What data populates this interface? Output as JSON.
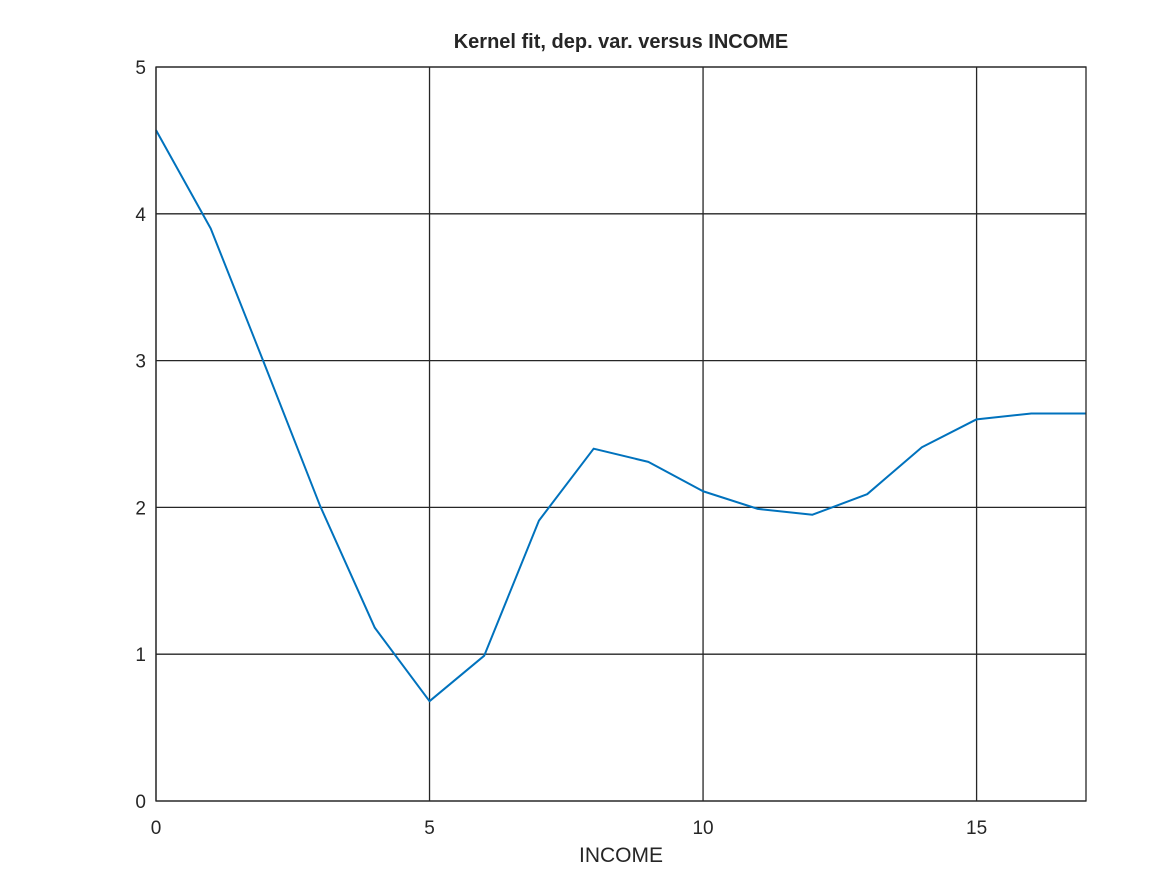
{
  "chart_data": {
    "type": "line",
    "title": "Kernel fit, dep. var. versus INCOME",
    "xlabel": "INCOME",
    "ylabel": "",
    "xlim": [
      0,
      17
    ],
    "ylim": [
      0,
      5
    ],
    "xticks": [
      0,
      5,
      10,
      15
    ],
    "yticks": [
      0,
      1,
      2,
      3,
      4,
      5
    ],
    "grid": true,
    "legend": "none",
    "line_color": "#0072bd",
    "grid_color": "#262626",
    "series": [
      {
        "x": [
          0,
          1,
          2,
          3,
          4,
          5,
          6,
          7,
          8,
          9,
          10,
          11,
          12,
          13,
          14,
          15,
          16,
          17
        ],
        "y": [
          4.57,
          3.9,
          2.96,
          2.01,
          1.18,
          0.68,
          0.99,
          1.91,
          2.4,
          2.31,
          2.11,
          1.99,
          1.95,
          2.09,
          2.41,
          2.6,
          2.64,
          2.64
        ]
      }
    ]
  }
}
